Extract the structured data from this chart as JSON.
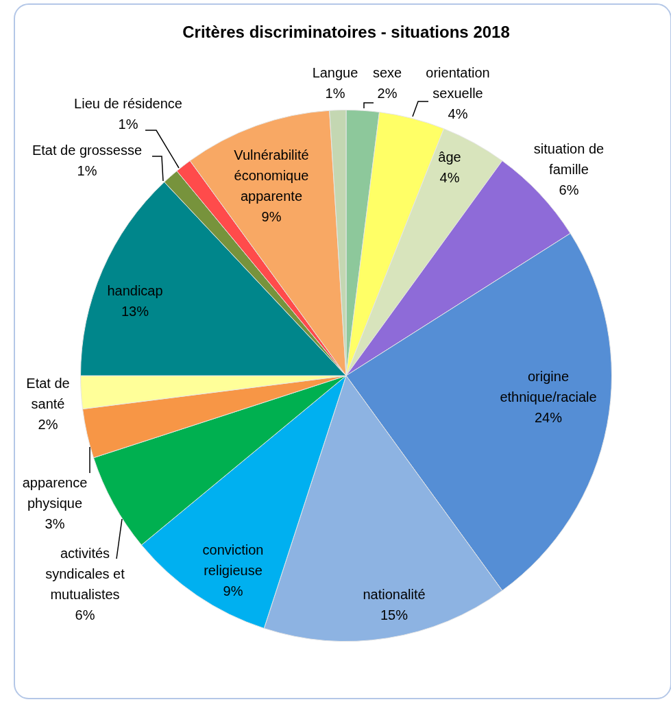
{
  "chart_data": {
    "type": "pie",
    "title": "Critères discriminatoires - situations 2018",
    "categories": [
      "sexe",
      "orientation sexuelle",
      "âge",
      "situation de famille",
      "origine ethnique/raciale",
      "nationalité",
      "conviction religieuse",
      "activités syndicales et mutualistes",
      "apparence physique",
      "Etat de santé",
      "handicap",
      "Etat de grossesse",
      "Lieu de résidence",
      "Vulnérabilité économique apparente",
      "Langue"
    ],
    "values": [
      2,
      4,
      4,
      6,
      24,
      15,
      9,
      6,
      3,
      2,
      13,
      1,
      1,
      9,
      1
    ],
    "value_labels": [
      "2%",
      "4%",
      "4%",
      "6%",
      "24%",
      "15%",
      "9%",
      "6%",
      "3%",
      "2%",
      "13%",
      "1%",
      "1%",
      "9%",
      "1%"
    ],
    "colors": [
      "#8dc89b",
      "#ffff66",
      "#d8e4bc",
      "#8e6bd8",
      "#558ed5",
      "#8db3e2",
      "#00b0f0",
      "#00b050",
      "#f79646",
      "#ffff99",
      "#00868b",
      "#77933c",
      "#ff4b4b",
      "#f8a864",
      "#c4d7b2"
    ],
    "legend": false
  }
}
